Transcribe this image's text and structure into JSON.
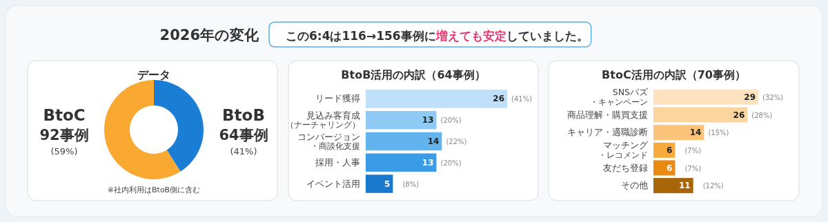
{
  "chart_data": [
    {
      "type": "other",
      "title": "2026年の変化",
      "subtitle": "この6:4は116→156事例に**増えても安定**していました。"
    },
    {
      "type": "donut",
      "title": "データ",
      "categories": [
        "BtoB",
        "BtoC"
      ],
      "values": [
        64,
        92
      ],
      "colors": [
        "#1a7fd4",
        "#f9a832"
      ],
      "value_labels": [
        "64事例 (41%)",
        "92事例 (59%)"
      ],
      "annotations": [
        "※社内利用はBtoB側に含む"
      ]
    },
    {
      "type": "bar",
      "orientation": "horizontal",
      "title": "BtoB活用の内訳（64事例）",
      "categories": [
        "リード獲得",
        "見込み客育成（ナーチャリング）",
        "コンバージョン・商談化支援",
        "採用・人事",
        "イベント活用"
      ],
      "values": [
        26,
        13,
        14,
        13,
        5
      ],
      "colors": [
        "#bfe0f8",
        "#8ecaf3",
        "#62b4ee",
        "#3a9be6",
        "#1878cc"
      ],
      "data_labels": true,
      "annotations": [
        {
          "text": "(41%)",
          "x": 26,
          "y": "リード獲得"
        },
        {
          "text": "(20%)",
          "x": 13,
          "y": "見込み客育成（ナーチャリング）"
        },
        {
          "text": "(22%)",
          "x": 14,
          "y": "コンバージョン・商談化支援"
        },
        {
          "text": "(20%)",
          "x": 13,
          "y": "採用・人事"
        },
        {
          "text": "(8%)",
          "x": 5,
          "y": "イベント活用"
        }
      ]
    },
    {
      "type": "bar",
      "orientation": "horizontal",
      "title": "BtoC活用の内訳（70事例）",
      "categories": [
        "SNSバズ・キャンペーン",
        "商品理解・購買支援",
        "キャリア・適職診断",
        "マッチング・レコメンド",
        "友だち登録",
        "その他"
      ],
      "values": [
        29,
        26,
        14,
        6,
        6,
        11
      ],
      "colors": [
        "#fde2bf",
        "#fcd49e",
        "#fbc47a",
        "#f8aa3c",
        "#e98b12",
        "#a8650a"
      ],
      "data_labels": true,
      "annotations": [
        {
          "text": "(32%)",
          "x": 29,
          "y": "SNSバズ・キャンペーン"
        },
        {
          "text": "(28%)",
          "x": 26,
          "y": "商品理解・購買支援"
        },
        {
          "text": "(15%)",
          "x": 14,
          "y": "キャリア・適職診断"
        },
        {
          "text": "(7%)",
          "x": 6,
          "y": "マッチング・レコメンド"
        },
        {
          "text": "(7%)",
          "x": 6,
          "y": "友だち登録"
        },
        {
          "text": "(12%)",
          "x": 11,
          "y": "その他"
        }
      ]
    }
  ]
}
